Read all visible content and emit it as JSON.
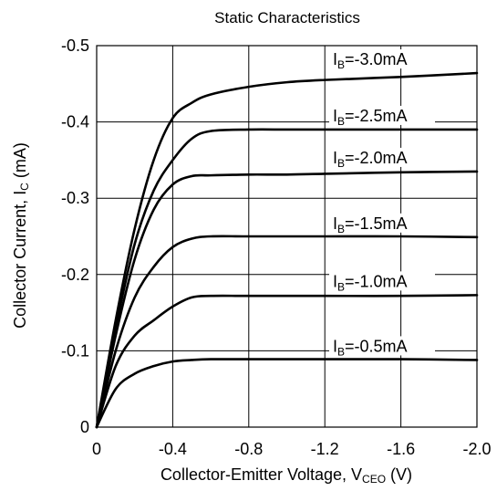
{
  "chart_data": {
    "type": "line",
    "title": "Static Characteristics",
    "xlabel_main": "Collector-Emitter Voltage, V",
    "xlabel_sub": "CEO",
    "xlabel_unit": " (V)",
    "ylabel_main": "Collector Current, I",
    "ylabel_sub": "C",
    "ylabel_unit": " (mA)",
    "xlim": [
      0,
      -2.0
    ],
    "ylim": [
      0,
      -0.5
    ],
    "x_ticks": [
      0,
      -0.4,
      -0.8,
      -1.2,
      -1.6,
      -2.0
    ],
    "x_tick_labels": [
      "0",
      "-0.4",
      "-0.8",
      "-1.2",
      "-1.6",
      "-2.0"
    ],
    "y_ticks": [
      0,
      -0.1,
      -0.2,
      -0.3,
      -0.4,
      -0.5
    ],
    "y_tick_labels": [
      "0",
      "-0.1",
      "-0.2",
      "-0.3",
      "-0.4",
      "-0.5"
    ],
    "grid": true,
    "series": [
      {
        "label_prefix": "I",
        "label_sub": "B",
        "label_value": "=-3.0mA",
        "x": [
          0,
          -0.1,
          -0.2,
          -0.3,
          -0.4,
          -0.5,
          -0.6,
          -0.8,
          -1.0,
          -1.2,
          -1.6,
          -2.0
        ],
        "y": [
          0,
          -0.14,
          -0.26,
          -0.35,
          -0.405,
          -0.425,
          -0.436,
          -0.446,
          -0.452,
          -0.455,
          -0.459,
          -0.464
        ]
      },
      {
        "label_prefix": "I",
        "label_sub": "B",
        "label_value": "=-2.5mA",
        "x": [
          0,
          -0.1,
          -0.2,
          -0.3,
          -0.4,
          -0.5,
          -0.6,
          -0.8,
          -1.0,
          -1.2,
          -1.6,
          -2.0
        ],
        "y": [
          0,
          -0.13,
          -0.24,
          -0.31,
          -0.35,
          -0.378,
          -0.388,
          -0.39,
          -0.39,
          -0.39,
          -0.39,
          -0.39
        ]
      },
      {
        "label_prefix": "I",
        "label_sub": "B",
        "label_value": "=-2.0mA",
        "x": [
          0,
          -0.1,
          -0.2,
          -0.3,
          -0.4,
          -0.5,
          -0.6,
          -0.8,
          -1.0,
          -1.2,
          -1.6,
          -2.0
        ],
        "y": [
          0,
          -0.12,
          -0.22,
          -0.285,
          -0.318,
          -0.329,
          -0.33,
          -0.331,
          -0.331,
          -0.332,
          -0.334,
          -0.335
        ]
      },
      {
        "label_prefix": "I",
        "label_sub": "B",
        "label_value": "=-1.5mA",
        "x": [
          0,
          -0.1,
          -0.2,
          -0.3,
          -0.4,
          -0.5,
          -0.6,
          -0.8,
          -1.0,
          -1.2,
          -1.6,
          -2.0
        ],
        "y": [
          0,
          -0.1,
          -0.17,
          -0.21,
          -0.236,
          -0.247,
          -0.25,
          -0.25,
          -0.25,
          -0.25,
          -0.25,
          -0.249
        ]
      },
      {
        "label_prefix": "I",
        "label_sub": "B",
        "label_value": "=-1.0mA",
        "x": [
          0,
          -0.1,
          -0.2,
          -0.3,
          -0.4,
          -0.5,
          -0.6,
          -0.8,
          -1.0,
          -1.2,
          -1.6,
          -2.0
        ],
        "y": [
          0,
          -0.08,
          -0.12,
          -0.14,
          -0.158,
          -0.17,
          -0.172,
          -0.172,
          -0.172,
          -0.172,
          -0.172,
          -0.173
        ]
      },
      {
        "label_prefix": "I",
        "label_sub": "B",
        "label_value": "=-0.5mA",
        "x": [
          0,
          -0.1,
          -0.2,
          -0.3,
          -0.4,
          -0.5,
          -0.6,
          -0.8,
          -1.0,
          -1.2,
          -1.6,
          -2.0
        ],
        "y": [
          0,
          -0.05,
          -0.07,
          -0.08,
          -0.086,
          -0.088,
          -0.089,
          -0.089,
          -0.089,
          -0.089,
          -0.089,
          -0.088
        ]
      }
    ]
  }
}
